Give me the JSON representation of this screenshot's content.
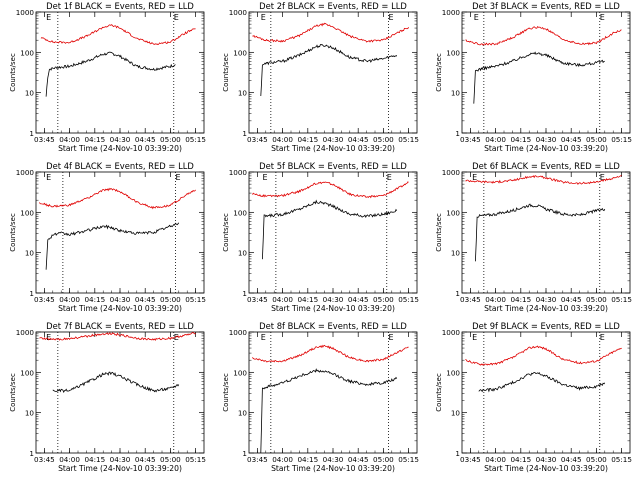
{
  "colors": {
    "events": "#000000",
    "lld": "#e00000",
    "axis": "#000000",
    "background": "#ffffff"
  },
  "chart_data": [
    {
      "type": "line",
      "title": "Det 1f BLACK = Events, RED = LLD",
      "xlabel": "Start Time (24-Nov-10 03:39:20)",
      "ylabel": "Counts/sec",
      "yscale": "log",
      "ylim": [
        1,
        1000
      ],
      "xlim": [
        "03:40",
        "05:20"
      ],
      "y_tick_labels": [
        "1",
        "10",
        "100",
        "1000"
      ],
      "x_tick_labels": [
        "03:45",
        "04:00",
        "04:15",
        "04:30",
        "04:45",
        "05:00",
        "05:15"
      ],
      "markers": [
        {
          "label": "E",
          "x": "03:46"
        },
        {
          "label": "E",
          "x": "05:02"
        }
      ],
      "vlines": [
        "03:53",
        "05:02"
      ],
      "series": [
        {
          "name": "Events",
          "color": "#000000",
          "x": [
            "03:46",
            "03:47",
            "03:48",
            "03:52",
            "04:00",
            "04:10",
            "04:20",
            "04:25",
            "04:30",
            "04:40",
            "04:50",
            "05:00",
            "05:03"
          ],
          "values": [
            8,
            25,
            38,
            42,
            45,
            60,
            90,
            95,
            80,
            45,
            38,
            45,
            50
          ]
        },
        {
          "name": "LLD",
          "color": "#e00000",
          "x": [
            "03:43",
            "03:50",
            "04:00",
            "04:10",
            "04:20",
            "04:25",
            "04:30",
            "04:40",
            "04:50",
            "05:00",
            "05:10",
            "05:15"
          ],
          "values": [
            230,
            180,
            175,
            250,
            420,
            470,
            400,
            220,
            160,
            180,
            320,
            380
          ]
        }
      ]
    },
    {
      "type": "line",
      "title": "Det 2f BLACK = Events, RED = LLD",
      "xlabel": "Start Time (24-Nov-10 03:39:20)",
      "ylabel": "Counts/sec",
      "yscale": "log",
      "ylim": [
        1,
        1000
      ],
      "xlim": [
        "03:40",
        "05:20"
      ],
      "y_tick_labels": [
        "1",
        "10",
        "100",
        "1000"
      ],
      "x_tick_labels": [
        "03:45",
        "04:00",
        "04:15",
        "04:30",
        "04:45",
        "05:00",
        "05:15"
      ],
      "markers": [
        {
          "label": "E",
          "x": "03:47"
        },
        {
          "label": "E",
          "x": "05:03"
        }
      ],
      "vlines": [
        "03:53",
        "05:03"
      ],
      "series": [
        {
          "name": "Events",
          "color": "#000000",
          "x": [
            "03:47",
            "03:48",
            "03:52",
            "04:00",
            "04:10",
            "04:20",
            "04:25",
            "04:30",
            "04:40",
            "04:50",
            "05:00",
            "05:05",
            "05:08"
          ],
          "values": [
            8,
            50,
            55,
            60,
            85,
            140,
            150,
            130,
            75,
            60,
            70,
            80,
            85
          ]
        },
        {
          "name": "LLD",
          "color": "#e00000",
          "x": [
            "03:42",
            "03:50",
            "04:00",
            "04:10",
            "04:20",
            "04:25",
            "04:30",
            "04:40",
            "04:50",
            "05:00",
            "05:10",
            "05:15"
          ],
          "values": [
            260,
            200,
            190,
            260,
            450,
            500,
            430,
            250,
            190,
            200,
            330,
            420
          ]
        }
      ]
    },
    {
      "type": "line",
      "title": "Det 3f BLACK = Events, RED = LLD",
      "xlabel": "Start Time (24-Nov-10 03:39:20)",
      "ylabel": "Counts/sec",
      "yscale": "log",
      "ylim": [
        1,
        1000
      ],
      "xlim": [
        "03:40",
        "05:20"
      ],
      "y_tick_labels": [
        "1",
        "10",
        "100",
        "1000"
      ],
      "x_tick_labels": [
        "03:45",
        "04:00",
        "04:15",
        "04:30",
        "04:45",
        "05:00",
        "05:15"
      ],
      "markers": [
        {
          "label": "E",
          "x": "03:47"
        },
        {
          "label": "E",
          "x": "05:02"
        }
      ],
      "vlines": [
        "03:53",
        "05:02"
      ],
      "series": [
        {
          "name": "Events",
          "color": "#000000",
          "x": [
            "03:47",
            "03:48",
            "03:52",
            "04:00",
            "04:10",
            "04:20",
            "04:25",
            "04:30",
            "04:40",
            "04:50",
            "05:00",
            "05:05"
          ],
          "values": [
            5,
            35,
            40,
            45,
            60,
            90,
            95,
            85,
            55,
            48,
            55,
            60
          ]
        },
        {
          "name": "LLD",
          "color": "#e00000",
          "x": [
            "03:42",
            "03:50",
            "04:00",
            "04:10",
            "04:20",
            "04:25",
            "04:30",
            "04:40",
            "04:50",
            "05:00",
            "05:10",
            "05:15"
          ],
          "values": [
            200,
            160,
            160,
            230,
            390,
            420,
            380,
            210,
            160,
            170,
            300,
            360
          ]
        }
      ]
    },
    {
      "type": "line",
      "title": "Det 4f BLACK = Events, RED = LLD",
      "xlabel": "Start Time (24-Nov-10 03:39:20)",
      "ylabel": "Counts/sec",
      "yscale": "log",
      "ylim": [
        1,
        1000
      ],
      "xlim": [
        "03:40",
        "05:20"
      ],
      "y_tick_labels": [
        "1",
        "10",
        "100",
        "1000"
      ],
      "x_tick_labels": [
        "03:45",
        "04:00",
        "04:15",
        "04:30",
        "04:45",
        "05:00",
        "05:15"
      ],
      "markers": [
        {
          "label": "E",
          "x": "03:46"
        },
        {
          "label": "E",
          "x": "05:03"
        }
      ],
      "vlines": [
        "03:56",
        "05:03"
      ],
      "series": [
        {
          "name": "Events",
          "color": "#000000",
          "x": [
            "03:46",
            "03:47",
            "03:50",
            "03:55",
            "04:00",
            "04:10",
            "04:20",
            "04:25",
            "04:30",
            "04:40",
            "04:50",
            "05:00",
            "05:05"
          ],
          "values": [
            4,
            20,
            28,
            30,
            28,
            35,
            45,
            42,
            35,
            30,
            32,
            45,
            55
          ]
        },
        {
          "name": "LLD",
          "color": "#e00000",
          "x": [
            "03:42",
            "03:50",
            "04:00",
            "04:10",
            "04:20",
            "04:25",
            "04:30",
            "04:40",
            "04:50",
            "05:00",
            "05:10",
            "05:15"
          ],
          "values": [
            170,
            140,
            150,
            220,
            350,
            380,
            330,
            180,
            130,
            150,
            280,
            360
          ]
        }
      ]
    },
    {
      "type": "line",
      "title": "Det 5f BLACK = Events, RED = LLD",
      "xlabel": "Start Time (24-Nov-10 03:39:20)",
      "ylabel": "Counts/sec",
      "yscale": "log",
      "ylim": [
        1,
        1000
      ],
      "xlim": [
        "03:40",
        "05:20"
      ],
      "y_tick_labels": [
        "1",
        "10",
        "100",
        "1000"
      ],
      "x_tick_labels": [
        "03:45",
        "04:00",
        "04:15",
        "04:30",
        "04:45",
        "05:00",
        "05:15"
      ],
      "markers": [
        {
          "label": "E",
          "x": "03:48"
        },
        {
          "label": "E",
          "x": "05:02"
        }
      ],
      "vlines": [
        "03:56",
        "05:02"
      ],
      "series": [
        {
          "name": "Events",
          "color": "#000000",
          "x": [
            "03:48",
            "03:49",
            "03:55",
            "04:00",
            "04:10",
            "04:20",
            "04:25",
            "04:30",
            "04:40",
            "04:50",
            "05:00",
            "05:08"
          ],
          "values": [
            7,
            80,
            85,
            90,
            120,
            180,
            170,
            140,
            90,
            80,
            90,
            110
          ]
        },
        {
          "name": "LLD",
          "color": "#e00000",
          "x": [
            "03:42",
            "03:50",
            "04:00",
            "04:10",
            "04:20",
            "04:25",
            "04:30",
            "04:40",
            "04:50",
            "05:00",
            "05:10",
            "05:15"
          ],
          "values": [
            290,
            250,
            260,
            330,
            520,
            560,
            490,
            280,
            240,
            260,
            420,
            560
          ]
        }
      ]
    },
    {
      "type": "line",
      "title": "Det 6f BLACK = Events, RED = LLD",
      "xlabel": "Start Time (24-Nov-10 03:39:20)",
      "ylabel": "Counts/sec",
      "yscale": "log",
      "ylim": [
        1,
        1000
      ],
      "xlim": [
        "03:40",
        "05:20"
      ],
      "y_tick_labels": [
        "1",
        "10",
        "100",
        "1000"
      ],
      "x_tick_labels": [
        "03:45",
        "04:00",
        "04:15",
        "04:30",
        "04:45",
        "05:00",
        "05:15"
      ],
      "markers": [
        {
          "label": "E",
          "x": "03:46"
        },
        {
          "label": "E",
          "x": "05:02"
        }
      ],
      "vlines": [
        "03:53",
        "05:02"
      ],
      "series": [
        {
          "name": "Events",
          "color": "#000000",
          "x": [
            "03:48",
            "03:49",
            "03:55",
            "04:00",
            "04:10",
            "04:20",
            "04:25",
            "04:30",
            "04:40",
            "04:50",
            "05:00",
            "05:05"
          ],
          "values": [
            6,
            80,
            85,
            90,
            110,
            150,
            145,
            120,
            90,
            85,
            110,
            120
          ]
        },
        {
          "name": "LLD",
          "color": "#e00000",
          "x": [
            "03:42",
            "03:50",
            "04:00",
            "04:10",
            "04:20",
            "04:25",
            "04:30",
            "04:40",
            "04:50",
            "05:00",
            "05:10",
            "05:15"
          ],
          "values": [
            620,
            580,
            560,
            620,
            760,
            780,
            720,
            560,
            520,
            560,
            700,
            820
          ]
        }
      ]
    },
    {
      "type": "line",
      "title": "Det 7f BLACK = Events, RED = LLD",
      "xlabel": "Start Time (24-Nov-10 03:39:20)",
      "ylabel": "Counts/sec",
      "yscale": "log",
      "ylim": [
        1,
        1000
      ],
      "xlim": [
        "03:40",
        "05:20"
      ],
      "y_tick_labels": [
        "1",
        "10",
        "100",
        "1000"
      ],
      "x_tick_labels": [
        "03:45",
        "04:00",
        "04:15",
        "04:30",
        "04:45",
        "05:00",
        "05:15"
      ],
      "markers": [
        {
          "label": "E",
          "x": "03:46"
        },
        {
          "label": "E",
          "x": "05:02"
        }
      ],
      "vlines": [
        "03:53",
        "05:02"
      ],
      "series": [
        {
          "name": "Events",
          "color": "#000000",
          "x": [
            "03:50",
            "04:00",
            "04:10",
            "04:20",
            "04:25",
            "04:30",
            "04:40",
            "04:50",
            "05:00",
            "05:05"
          ],
          "values": [
            35,
            35,
            55,
            90,
            95,
            80,
            50,
            35,
            40,
            50
          ]
        },
        {
          "name": "LLD",
          "color": "#e00000",
          "x": [
            "03:42",
            "03:50",
            "04:00",
            "04:10",
            "04:20",
            "04:25",
            "04:30",
            "04:40",
            "04:50",
            "05:00",
            "05:10",
            "05:15"
          ],
          "values": [
            700,
            650,
            680,
            780,
            900,
            920,
            850,
            700,
            650,
            700,
            850,
            950
          ]
        }
      ]
    },
    {
      "type": "line",
      "title": "Det 8f BLACK = Events, RED = LLD",
      "xlabel": "Start Time (24-Nov-10 03:39:20)",
      "ylabel": "Counts/sec",
      "yscale": "log",
      "ylim": [
        1,
        1000
      ],
      "xlim": [
        "03:40",
        "05:20"
      ],
      "y_tick_labels": [
        "1",
        "10",
        "100",
        "1000"
      ],
      "x_tick_labels": [
        "03:45",
        "04:00",
        "04:15",
        "04:30",
        "04:45",
        "05:00",
        "05:15"
      ],
      "markers": [
        {
          "label": "E",
          "x": "03:47"
        },
        {
          "label": "E",
          "x": "05:03"
        }
      ],
      "vlines": [
        "03:53",
        "05:03"
      ],
      "series": [
        {
          "name": "Events",
          "color": "#000000",
          "x": [
            "03:47",
            "03:48",
            "03:52",
            "04:00",
            "04:10",
            "04:20",
            "04:25",
            "04:30",
            "04:40",
            "04:50",
            "05:00",
            "05:08"
          ],
          "values": [
            1,
            40,
            45,
            55,
            80,
            110,
            105,
            90,
            60,
            50,
            55,
            70
          ]
        },
        {
          "name": "LLD",
          "color": "#e00000",
          "x": [
            "03:42",
            "03:50",
            "04:00",
            "04:10",
            "04:20",
            "04:25",
            "04:30",
            "04:40",
            "04:50",
            "05:00",
            "05:10",
            "05:15"
          ],
          "values": [
            230,
            190,
            190,
            260,
            420,
            450,
            390,
            230,
            190,
            210,
            340,
            420
          ]
        }
      ]
    },
    {
      "type": "line",
      "title": "Det 9f BLACK = Events, RED = LLD",
      "xlabel": "Start Time (24-Nov-10 03:39:20)",
      "ylabel": "Counts/sec",
      "yscale": "log",
      "ylim": [
        1,
        1000
      ],
      "xlim": [
        "03:40",
        "05:20"
      ],
      "y_tick_labels": [
        "1",
        "10",
        "100",
        "1000"
      ],
      "x_tick_labels": [
        "03:45",
        "04:00",
        "04:15",
        "04:30",
        "04:45",
        "05:00",
        "05:15"
      ],
      "markers": [
        {
          "label": "E",
          "x": "03:46"
        },
        {
          "label": "E",
          "x": "05:02"
        }
      ],
      "vlines": [
        "03:53",
        "05:02"
      ],
      "series": [
        {
          "name": "Events",
          "color": "#000000",
          "x": [
            "03:50",
            "04:00",
            "04:10",
            "04:20",
            "04:25",
            "04:30",
            "04:40",
            "04:50",
            "05:00",
            "05:05"
          ],
          "values": [
            35,
            38,
            55,
            90,
            95,
            80,
            50,
            40,
            45,
            55
          ]
        },
        {
          "name": "LLD",
          "color": "#e00000",
          "x": [
            "03:42",
            "03:50",
            "04:00",
            "04:10",
            "04:20",
            "04:25",
            "04:30",
            "04:40",
            "04:50",
            "05:00",
            "05:10",
            "05:15"
          ],
          "values": [
            200,
            160,
            160,
            230,
            400,
            440,
            380,
            210,
            170,
            190,
            320,
            400
          ]
        }
      ]
    }
  ]
}
